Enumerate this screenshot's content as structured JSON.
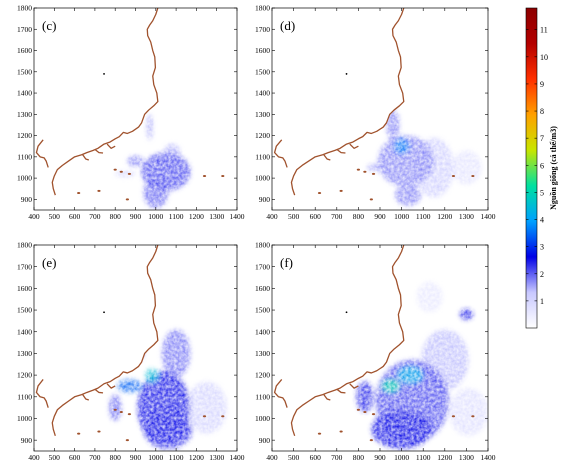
{
  "chart_data": {
    "type": "heatmap",
    "x_ticks": [
      400,
      500,
      600,
      700,
      800,
      900,
      1000,
      1100,
      1200,
      1300,
      1400
    ],
    "y_ticks": [
      900,
      1000,
      1100,
      1200,
      1300,
      1400,
      1500,
      1600,
      1700,
      1800
    ],
    "xlim": [
      400,
      1400
    ],
    "ylim": [
      850,
      1800
    ],
    "grid": false,
    "colorbar": {
      "label": "Nguồn giống (cá thể/m3)",
      "ticks": [
        1,
        2,
        3,
        4,
        5,
        6,
        7,
        8,
        9,
        10,
        11
      ],
      "range": [
        0,
        11.8
      ],
      "colors": [
        "#ffffff",
        "#c8c8ff",
        "#0000e6",
        "#00a0ff",
        "#00e0a0",
        "#c8e600",
        "#ffa000",
        "#ff3000",
        "#b40000",
        "#8c0000"
      ],
      "placement": "right"
    },
    "coastline_color": "#a0522d",
    "panels": [
      {
        "label": "(c)",
        "blobs": [
          {
            "x": 1050,
            "y": 1030,
            "rx": 120,
            "ry": 90,
            "v": 2.2
          },
          {
            "x": 1000,
            "y": 930,
            "rx": 60,
            "ry": 70,
            "v": 2.0
          },
          {
            "x": 1080,
            "y": 1120,
            "rx": 40,
            "ry": 40,
            "v": 1.5
          },
          {
            "x": 900,
            "y": 1080,
            "rx": 40,
            "ry": 25,
            "v": 1.8
          },
          {
            "x": 970,
            "y": 1240,
            "rx": 14,
            "ry": 60,
            "v": 1.6
          },
          {
            "x": 850,
            "y": 1020,
            "rx": 50,
            "ry": 14,
            "v": 1.2
          }
        ]
      },
      {
        "label": "(d)",
        "blobs": [
          {
            "x": 1020,
            "y": 1080,
            "rx": 130,
            "ry": 120,
            "v": 1.8
          },
          {
            "x": 1000,
            "y": 1150,
            "rx": 40,
            "ry": 40,
            "v": 3.6
          },
          {
            "x": 960,
            "y": 1250,
            "rx": 30,
            "ry": 70,
            "v": 1.8
          },
          {
            "x": 1150,
            "y": 1050,
            "rx": 90,
            "ry": 140,
            "v": 1.2
          },
          {
            "x": 1030,
            "y": 920,
            "rx": 60,
            "ry": 50,
            "v": 1.8
          },
          {
            "x": 1300,
            "y": 1050,
            "rx": 70,
            "ry": 80,
            "v": 0.7
          },
          {
            "x": 880,
            "y": 1050,
            "rx": 40,
            "ry": 20,
            "v": 1.5
          }
        ]
      },
      {
        "label": "(e)",
        "blobs": [
          {
            "x": 1040,
            "y": 1050,
            "rx": 130,
            "ry": 170,
            "v": 2.6
          },
          {
            "x": 1060,
            "y": 950,
            "rx": 120,
            "ry": 90,
            "v": 2.4
          },
          {
            "x": 1100,
            "y": 1300,
            "rx": 70,
            "ry": 110,
            "v": 1.9
          },
          {
            "x": 980,
            "y": 1200,
            "rx": 30,
            "ry": 30,
            "v": 4.5
          },
          {
            "x": 870,
            "y": 1150,
            "rx": 60,
            "ry": 30,
            "v": 3.4
          },
          {
            "x": 920,
            "y": 1330,
            "rx": 20,
            "ry": 60,
            "v": 2.5
          },
          {
            "x": 1250,
            "y": 1050,
            "rx": 100,
            "ry": 120,
            "v": 1.1
          },
          {
            "x": 800,
            "y": 1050,
            "rx": 30,
            "ry": 60,
            "v": 2.0
          }
        ]
      },
      {
        "label": "(f)",
        "blobs": [
          {
            "x": 1050,
            "y": 1080,
            "rx": 170,
            "ry": 190,
            "v": 2.2
          },
          {
            "x": 1000,
            "y": 950,
            "rx": 140,
            "ry": 90,
            "v": 2.6
          },
          {
            "x": 1040,
            "y": 1200,
            "rx": 60,
            "ry": 40,
            "v": 4.2
          },
          {
            "x": 950,
            "y": 1150,
            "rx": 40,
            "ry": 30,
            "v": 5.0
          },
          {
            "x": 930,
            "y": 1430,
            "rx": 25,
            "ry": 120,
            "v": 1.6
          },
          {
            "x": 1200,
            "y": 1270,
            "rx": 110,
            "ry": 140,
            "v": 1.4
          },
          {
            "x": 1310,
            "y": 1030,
            "rx": 90,
            "ry": 110,
            "v": 0.8
          },
          {
            "x": 1300,
            "y": 1480,
            "rx": 30,
            "ry": 25,
            "v": 2.6
          },
          {
            "x": 830,
            "y": 1100,
            "rx": 40,
            "ry": 70,
            "v": 2.4
          },
          {
            "x": 1130,
            "y": 1560,
            "rx": 60,
            "ry": 70,
            "v": 0.6
          }
        ]
      }
    ]
  }
}
